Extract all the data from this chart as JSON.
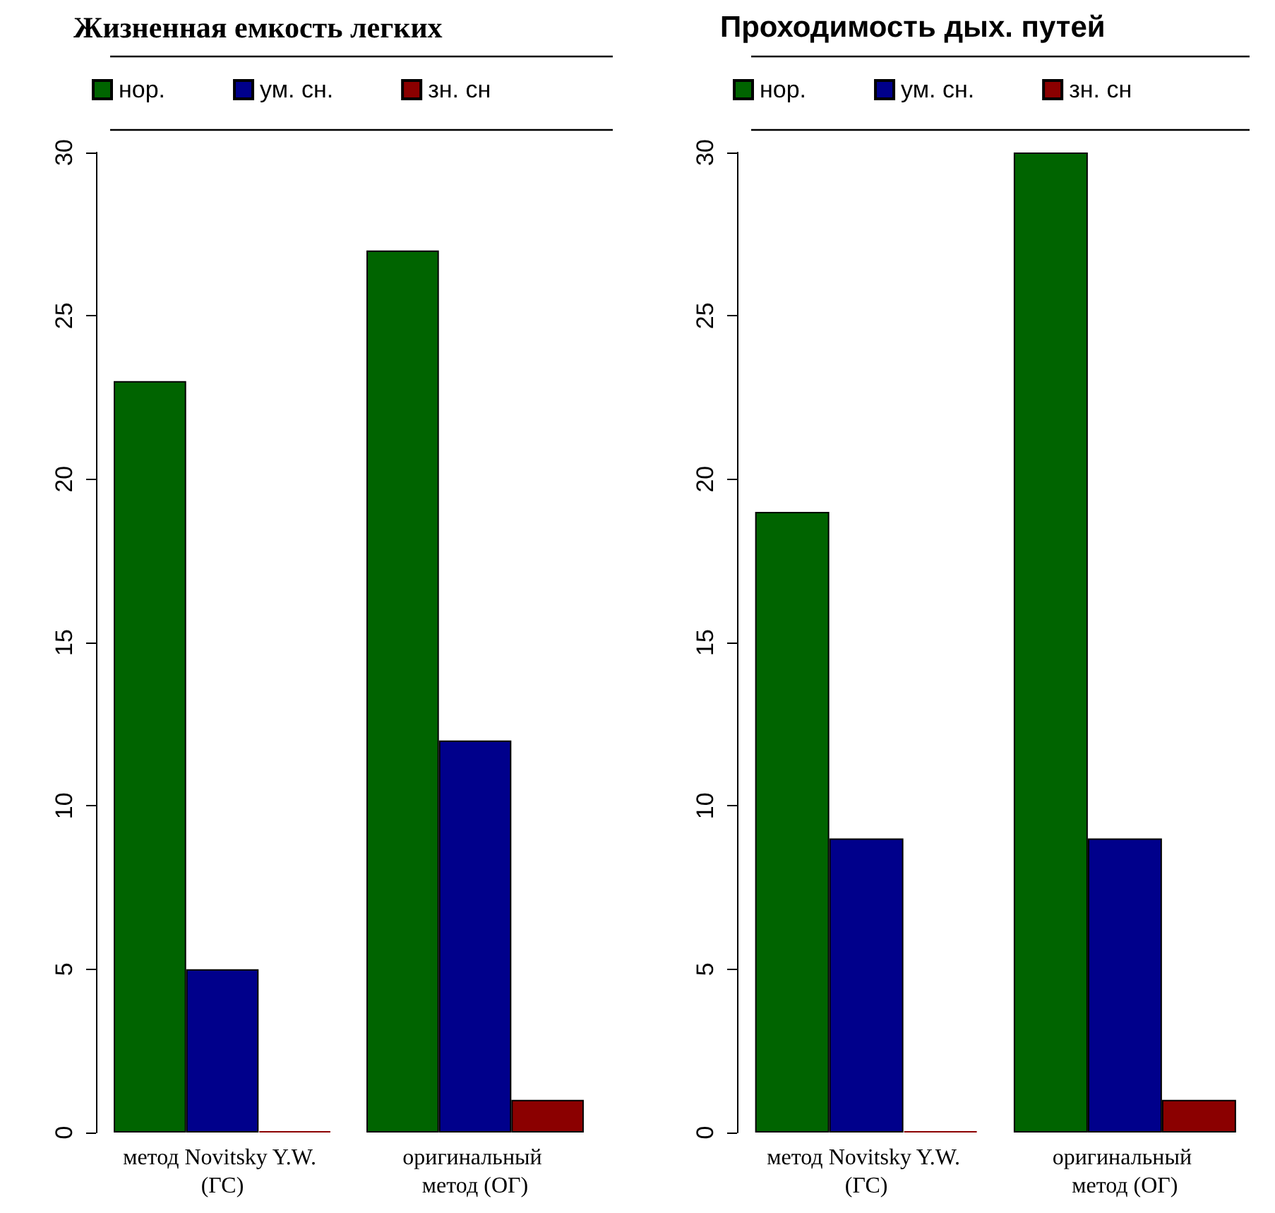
{
  "chart_data": [
    {
      "type": "bar",
      "title": "Жизненная емкость легких",
      "categories": [
        "метод Novitsky Y.W. (ГС)",
        "оригинальный метод (ОГ)"
      ],
      "series": [
        {
          "name": "нор.",
          "color": "#006400",
          "values": [
            23,
            27
          ]
        },
        {
          "name": "ум. сн.",
          "color": "#00008b",
          "values": [
            5,
            12
          ]
        },
        {
          "name": "зн. сн",
          "color": "#8b0000",
          "values": [
            0,
            1
          ]
        }
      ],
      "ylim": [
        0,
        30
      ],
      "yticks": [
        0,
        5,
        10,
        15,
        20,
        25,
        30
      ],
      "legend": "top"
    },
    {
      "type": "bar",
      "title": "Проходимость дых. путей",
      "categories": [
        "метод Novitsky Y.W. (ГС)",
        "оригинальный метод (ОГ)"
      ],
      "series": [
        {
          "name": "нор.",
          "color": "#006400",
          "values": [
            19,
            30
          ]
        },
        {
          "name": "ум. сн.",
          "color": "#00008b",
          "values": [
            9,
            9
          ]
        },
        {
          "name": "зн. сн",
          "color": "#8b0000",
          "values": [
            0,
            1
          ]
        }
      ],
      "ylim": [
        0,
        30
      ],
      "yticks": [
        0,
        5,
        10,
        15,
        20,
        25,
        30
      ],
      "legend": "top"
    }
  ]
}
